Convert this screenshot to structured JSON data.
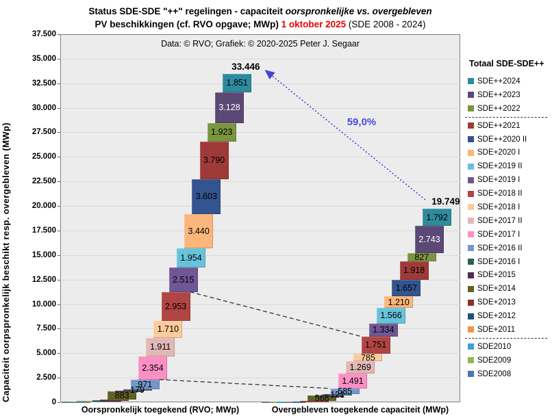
{
  "title": {
    "line1_prefix": "Status SDE-SDE \"++\" regelingen - capaciteit ",
    "line1_italic": "oorspronkelijke vs. overgebleven",
    "line2_prefix": "PV beschikkingen (cf. RVO opgave; MWp) ",
    "line2_red": "1 oktober 2025",
    "line2_suffix": " (SDE 2008 - 2024)"
  },
  "credit": "Data: © RVO; Grafiek: © 2020-2025 Peter J. Segaar",
  "legend": {
    "title": "Totaal SDE-SDE++",
    "separators_after": [
      "SDE++2022",
      "SDE+2011"
    ]
  },
  "chart_data": {
    "type": "bar",
    "variant": "cascading stacked columns (waterfall style), two stacks",
    "unit": "MWp",
    "title": "Status SDE-SDE \"++\" regelingen - capaciteit oorspronkelijke vs. overgebleven PV beschikkingen (cf. RVO opgave; MWp) 1 oktober 2025 (SDE 2008 - 2024)",
    "ylabel": "Capaciteit oorpspronkelijk beschikt resp. overgebleven (MWp)",
    "categories": [
      "Oorspronkelijk toegekend (RVO; MWp)",
      "Overgebleven toegekende capaciteit (MWp)"
    ],
    "y_axis": {
      "min": 0,
      "max": 37500,
      "tick_step": 2500,
      "tick_labels": [
        "0",
        "2.500",
        "5.000",
        "7.500",
        "10.000",
        "12.500",
        "15.000",
        "17.500",
        "20.000",
        "22.500",
        "25.000",
        "27.500",
        "30.000",
        "32.500",
        "35.000",
        "37.500"
      ],
      "grid": true
    },
    "totals": {
      "values": [
        33446,
        19749
      ],
      "labels": [
        "33.446",
        "19.749"
      ]
    },
    "reduction_percent_label": "59,0%",
    "series": [
      {
        "name": "SDE2008",
        "color": "#4b77b1",
        "values": [
          22,
          10
        ],
        "labels": [
          null,
          null
        ],
        "approx": true
      },
      {
        "name": "SDE2009",
        "color": "#8fb84e",
        "values": [
          58,
          25
        ],
        "labels": [
          null,
          null
        ],
        "approx": true
      },
      {
        "name": "SDE2010",
        "color": "#3fa0d0",
        "values": [
          67,
          30
        ],
        "labels": [
          null,
          null
        ],
        "approx": true
      },
      {
        "name": "SDE+2011",
        "color": "#f79345",
        "values": [
          26,
          12
        ],
        "labels": [
          null,
          null
        ],
        "approx": true
      },
      {
        "name": "SDE+2012",
        "color": "#24507c",
        "values": [
          17,
          8
        ],
        "labels": [
          null,
          null
        ],
        "approx": true
      },
      {
        "name": "SDE+2013",
        "color": "#8e2d2b",
        "values": [
          62,
          30
        ],
        "labels": [
          null,
          null
        ],
        "approx": true
      },
      {
        "name": "SDE+2014",
        "color": "#5f6323",
        "values": [
          883,
          568
        ],
        "labels": [
          "883",
          "568"
        ]
      },
      {
        "name": "SDE+2015",
        "color": "#512c51",
        "values": [
          29,
          17
        ],
        "labels": [
          null,
          null
        ],
        "approx": true
      },
      {
        "name": "SDE+2016 I",
        "color": "#2b6158",
        "values": [
          179,
          121
        ],
        "labels": [
          "179",
          "121"
        ]
      },
      {
        "name": "SDE+2016 II",
        "color": "#7497ca",
        "values": [
          971,
          585
        ],
        "labels": [
          "971",
          "585"
        ]
      },
      {
        "name": "SDE+2017 I",
        "color": "#fc90c5",
        "values": [
          2354,
          1491
        ],
        "labels": [
          "2.354",
          "1.491"
        ]
      },
      {
        "name": "SDE+2017 II",
        "color": "#e2b8b7",
        "values": [
          1911,
          1269
        ],
        "labels": [
          "1.911",
          "1.269"
        ]
      },
      {
        "name": "SDE+2018 I",
        "color": "#fbcb9b",
        "values": [
          1710,
          785
        ],
        "labels": [
          "1.710",
          "785"
        ]
      },
      {
        "name": "SDE+2018 II",
        "color": "#b04543",
        "values": [
          2953,
          1751
        ],
        "labels": [
          "2.953",
          "1.751"
        ]
      },
      {
        "name": "SDE+2019 I",
        "color": "#6f5694",
        "values": [
          2515,
          1334
        ],
        "labels": [
          "2.515",
          "1.334"
        ]
      },
      {
        "name": "SDE+2019 II",
        "color": "#67c3db",
        "values": [
          1954,
          1566
        ],
        "labels": [
          "1.954",
          "1.566"
        ]
      },
      {
        "name": "SDE+2020 I",
        "color": "#fab67b",
        "values": [
          3440,
          1210
        ],
        "labels": [
          "3.440",
          "1.210"
        ]
      },
      {
        "name": "SDE++2020 II",
        "color": "#33548e",
        "values": [
          3603,
          1657
        ],
        "labels": [
          "3.603",
          "1.657"
        ]
      },
      {
        "name": "SDE++2021",
        "color": "#9e3b39",
        "values": [
          3790,
          1918
        ],
        "labels": [
          "3.790",
          "1.918"
        ]
      },
      {
        "name": "SDE++2022",
        "color": "#7a963f",
        "values": [
          1923,
          827
        ],
        "labels": [
          "1.923",
          "827"
        ]
      },
      {
        "name": "SDE++2023",
        "color": "#5c4875",
        "values": [
          3128,
          2743
        ],
        "labels": [
          "3.128",
          "2.743"
        ],
        "label_color": "#ffffff"
      },
      {
        "name": "SDE++2024",
        "color": "#2e8b9e",
        "values": [
          1851,
          1792
        ],
        "labels": [
          "1.851",
          "1.792"
        ]
      }
    ],
    "connector_dashed_lines_between_stacks_at_series": [
      "SDE+2018 II",
      "SDE+2016 II"
    ],
    "legend_position": "right"
  }
}
